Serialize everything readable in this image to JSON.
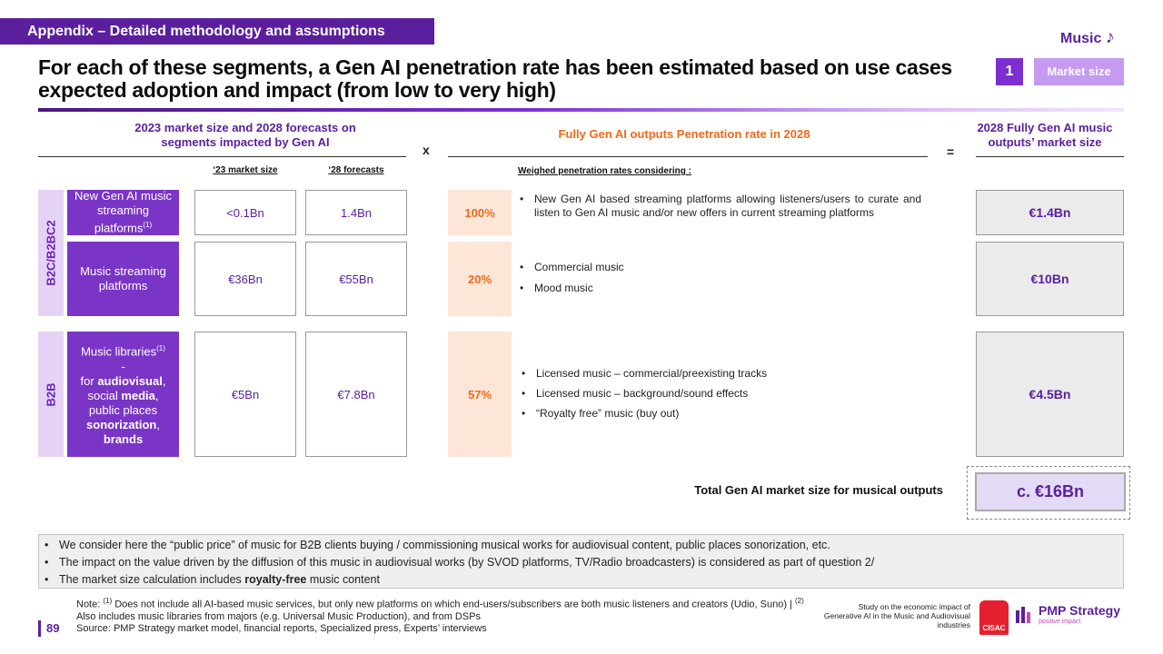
{
  "header": {
    "tag": "Appendix – Detailed methodology and assumptions",
    "section": "Music",
    "title": "For each of these segments, a Gen AI penetration rate has been estimated based on use cases expected adoption and impact (from low to very high)",
    "badge_number": "1",
    "badge_label": "Market size"
  },
  "columns": {
    "market": "2023 market size and 2028 forecasts on segments impacted by Gen AI",
    "times": "x",
    "penetration": "Fully Gen AI outputs  Penetration rate in 2028",
    "equals": "=",
    "result": "2028 Fully Gen AI music outputs’ market size",
    "sub_2023": "‘23 market size",
    "sub_2028": "‘28 forecasts",
    "sub_weighed": "Weighed penetration rates considering :"
  },
  "groups": {
    "b2c": "B2C/B2BC2",
    "b2b": "B2B"
  },
  "rows": [
    {
      "segment_text": "New Gen AI music streaming platforms",
      "segment_sup": "(1)",
      "size_2023": "<0.1Bn",
      "forecast_2028": "1.4Bn",
      "rate": "100%",
      "bullets": [
        "New Gen AI based streaming platforms allowing listeners/users to curate and listen to Gen AI music and/or new offers in current streaming platforms"
      ],
      "result": "€1.4Bn"
    },
    {
      "segment_text": "Music streaming platforms",
      "size_2023": "€36Bn",
      "forecast_2028": "€55Bn",
      "rate": "20%",
      "bullets": [
        "Commercial music",
        "Mood music"
      ],
      "result": "€10Bn"
    },
    {
      "segment_title": "Music libraries",
      "segment_sup": "(1)",
      "segment_dash": "-",
      "seg_for": "for ",
      "seg_audiovisual": "audiovisual",
      "seg_comma1": ",",
      "seg_social": "social ",
      "seg_media": "media",
      "seg_comma2": ",",
      "seg_public": "public places",
      "seg_sonorization": "sonorization",
      "seg_comma3": ",",
      "seg_brands": "brands",
      "size_2023": "€5Bn",
      "forecast_2028": "€7.8Bn",
      "rate": "57%",
      "bullets": [
        "Licensed music – commercial/preexisting tracks",
        "Licensed music – background/sound effects",
        "“Royalty free” music (buy out)"
      ],
      "result": "€4.5Bn"
    }
  ],
  "total": {
    "label": "Total Gen AI market size for musical outputs",
    "value": "c. €16Bn"
  },
  "notes": [
    "We consider here the “public price” of music for B2B clients buying / commissioning musical works for audiovisual content, public places sonorization, etc.",
    "The impact on the value driven by the diffusion of this music in audiovisual works (by SVOD platforms, TV/Radio broadcasters) is considered as part of question 2/"
  ],
  "note3": {
    "pre": "The market size calculation includes ",
    "bold": "royalty-free",
    "post": " music content"
  },
  "footer": {
    "note_prefix": "Note: ",
    "sup1": "(1)",
    "note1": " Does not include all AI-based music services, but only new platforms on which end-users/subscribers are both music listeners and creators (Udio, Suno) | ",
    "sup2": "(2)",
    "note2": " Also includes music libraries from majors (e.g. Universal Music Production), and from DSPs",
    "source": "Source:  PMP Strategy market model, financial reports, Specialized press, Experts’ interviews",
    "page": "89",
    "study": "Study on the economic impact of Generative AI in the Music and Audiovisual industries",
    "cisac": "CISAC",
    "pmp": "PMP Strategy",
    "pmp_sub": "positive impact"
  }
}
